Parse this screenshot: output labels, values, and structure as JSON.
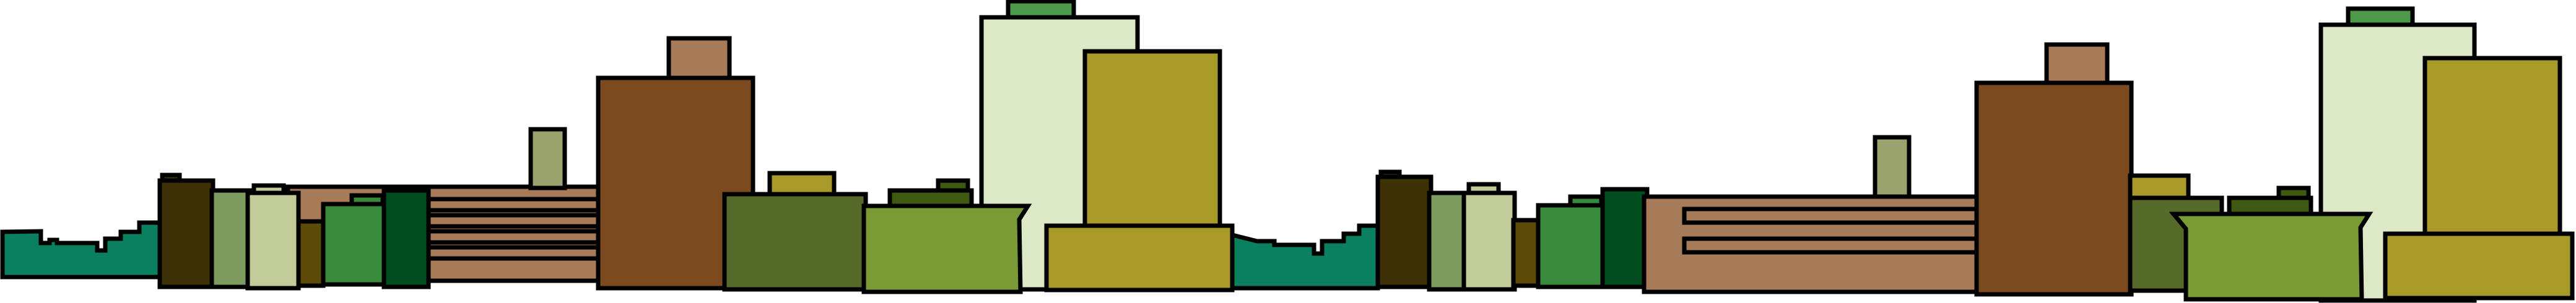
{
  "image": {
    "kind": "flat-vector city skyline illustration",
    "palette": {
      "teal_green": "#0a8060",
      "dark_olive": "#3d3205",
      "sage": "#7f9a5f",
      "pale_sage": "#c2cc9a",
      "olive_brown": "#5b4a08",
      "tan_brown": "#a77a58",
      "medium_green": "#3a8a3e",
      "forest_green": "#004d20",
      "rust_brown": "#7c4a1f",
      "olive_green": "#566b2a",
      "mustard": "#a89a28",
      "moss": "#7a9a36",
      "pale_green": "#dce8c6",
      "leaf_green": "#4f9a4a",
      "khaki": "#9aa26e",
      "dark_moss": "#3e5a12",
      "outline": "#000000"
    }
  }
}
